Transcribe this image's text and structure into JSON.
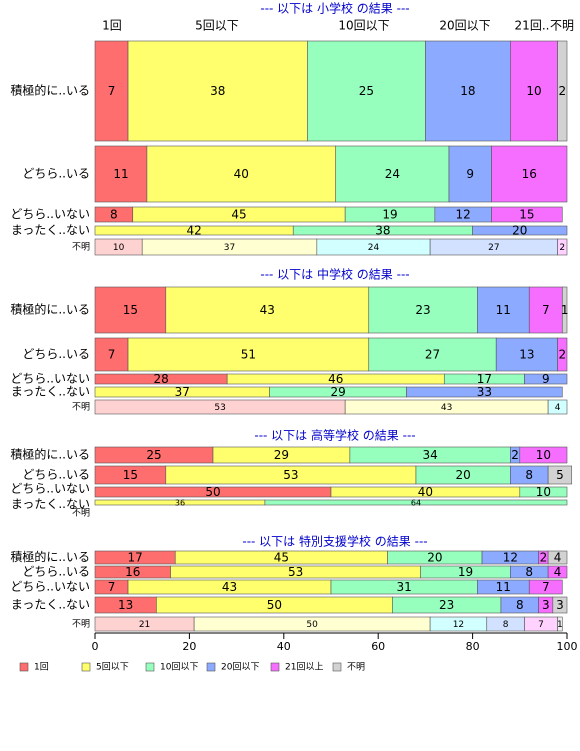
{
  "chart_data": {
    "type": "bar",
    "orientation": "horizontal",
    "stacked": true,
    "xlim": [
      0,
      100
    ],
    "x_ticks": [
      "0",
      "20",
      "40",
      "60",
      "80",
      "100"
    ],
    "legend_placement": "bottom-left",
    "series_names": [
      "1回",
      "5回以下",
      "10回以下",
      "20回以下",
      "21回以上",
      "不明"
    ],
    "colors": [
      "#FF6E6E",
      "#FFFF6E",
      "#96FFBE",
      "#8CAAFF",
      "#F66EFF",
      "#D2D2D2"
    ],
    "light_colors": [
      "#FFD2D2",
      "#FFFFD2",
      "#D2FFFF",
      "#D2E1FF",
      "#FFD2FF",
      "#EEEEEE"
    ],
    "top_labels": [
      "1回",
      "5回以下",
      "10回以下",
      "20回以下",
      "21回..",
      "不明"
    ],
    "panels": [
      {
        "title": "--- 以下は 小学校 の結果 ---",
        "categories": [
          "積極的に..いる",
          "どちら..いる",
          "どちら..いない",
          "まったく..ない",
          "不明"
        ],
        "values": [
          [
            7,
            38,
            25,
            18,
            10,
            2
          ],
          [
            11,
            40,
            24,
            9,
            16,
            0
          ],
          [
            8,
            45,
            19,
            12,
            15,
            0
          ],
          [
            0,
            42,
            38,
            20,
            0,
            0
          ],
          [
            10,
            37,
            24,
            27,
            2,
            0
          ]
        ]
      },
      {
        "title": "--- 以下は 中学校 の結果 ---",
        "categories": [
          "積極的に..いる",
          "どちら..いる",
          "どちら..いない",
          "まったく..ない",
          "不明"
        ],
        "values": [
          [
            15,
            43,
            23,
            11,
            7,
            1
          ],
          [
            7,
            51,
            27,
            13,
            2,
            0
          ],
          [
            28,
            46,
            17,
            9,
            0,
            0
          ],
          [
            0,
            37,
            29,
            33,
            0,
            0
          ],
          [
            53,
            43,
            4,
            0,
            0,
            0
          ]
        ]
      },
      {
        "title": "--- 以下は 高等学校 の結果 ---",
        "categories": [
          "積極的に..いる",
          "どちら..いる",
          "どちら..いない",
          "まったく..ない",
          "不明"
        ],
        "values": [
          [
            25,
            29,
            34,
            2,
            10,
            0
          ],
          [
            15,
            53,
            20,
            8,
            0,
            5
          ],
          [
            50,
            40,
            10,
            0,
            0,
            0
          ],
          [
            0,
            36,
            64,
            0,
            0,
            0
          ],
          [
            0,
            0,
            0,
            0,
            0,
            0
          ]
        ]
      },
      {
        "title": "--- 以下は 特別支援学校 の結果 ---",
        "categories": [
          "積極的に..いる",
          "どちら..いる",
          "どちら..いない",
          "まったく..ない",
          "不明"
        ],
        "values": [
          [
            17,
            45,
            20,
            12,
            2,
            4
          ],
          [
            16,
            53,
            19,
            8,
            4,
            0
          ],
          [
            7,
            43,
            31,
            11,
            7,
            0
          ],
          [
            13,
            50,
            23,
            8,
            3,
            3
          ],
          [
            21,
            50,
            12,
            8,
            7,
            1
          ]
        ]
      }
    ]
  }
}
